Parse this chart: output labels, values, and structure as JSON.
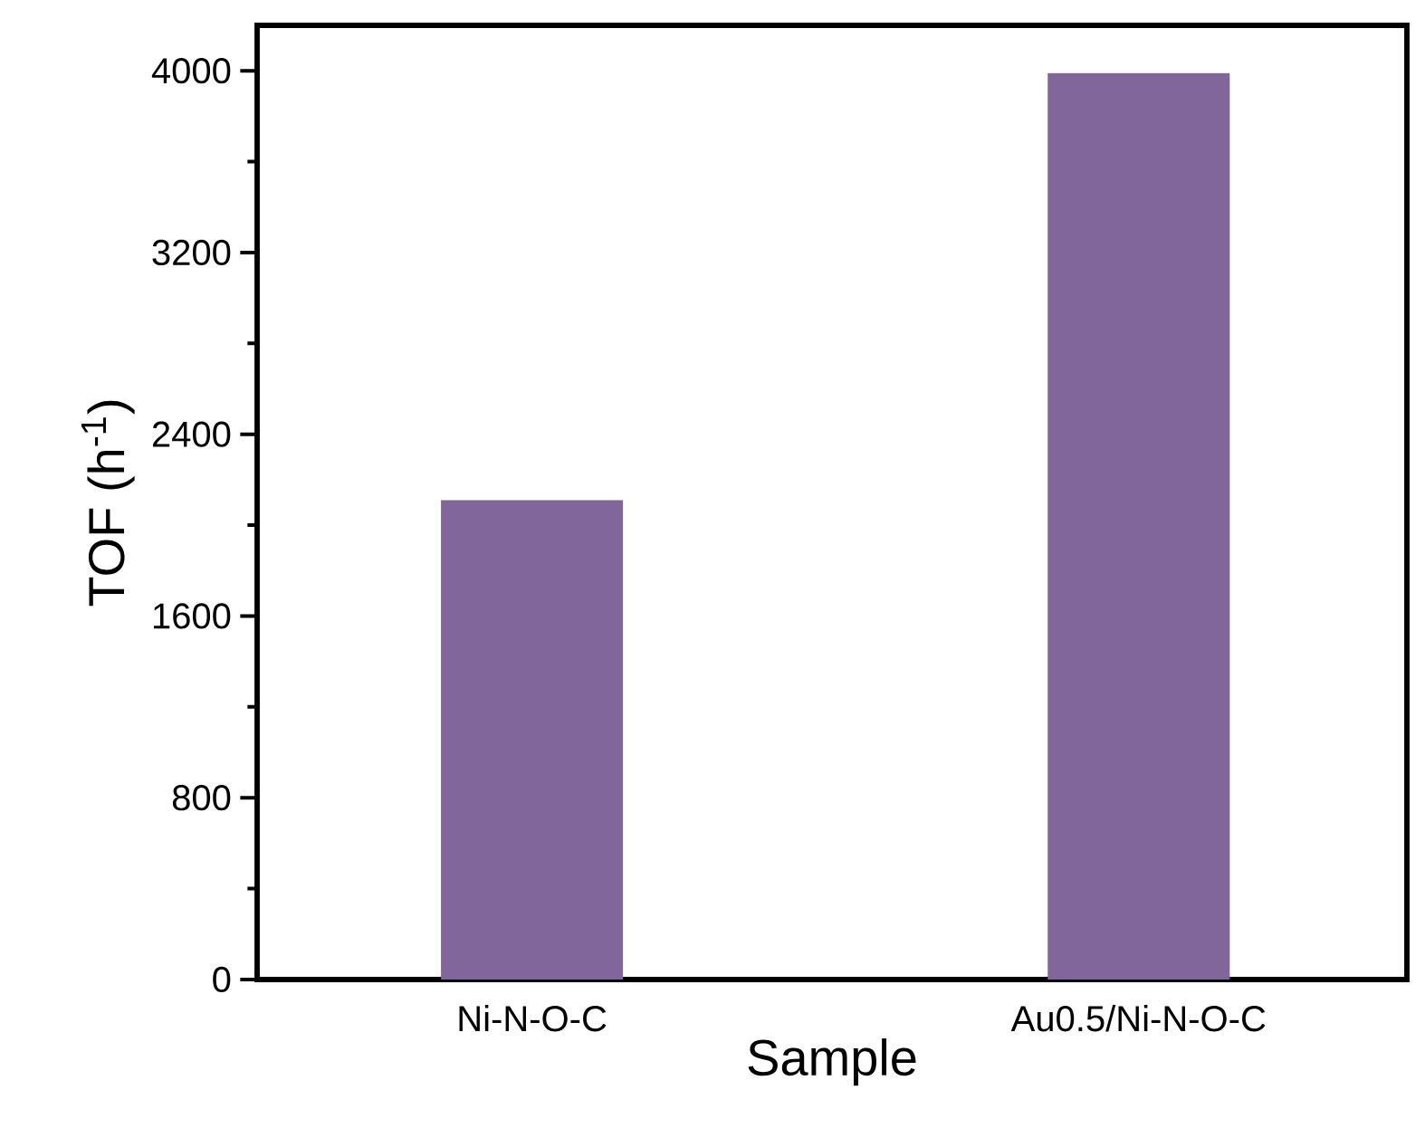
{
  "chart_data": {
    "type": "bar",
    "xlabel": "Sample",
    "ylabel": "TOF (h$^{-1}$)",
    "categories": [
      "Ni-N-O-C",
      "Au0.5/Ni-N-O-C"
    ],
    "values": [
      2110,
      3990
    ],
    "color": "#80669a",
    "ylim": [
      0,
      4200
    ],
    "yticks": [
      0,
      {
        "value": 400,
        "label": null
      },
      800,
      {
        "value": 1200,
        "label": null
      },
      1600,
      {
        "value": 2000,
        "label": null
      },
      2400,
      {
        "value": 2800,
        "label": null
      },
      3200,
      {
        "value": 3600,
        "label": null
      },
      4000
    ],
    "orientation": "vertical"
  }
}
